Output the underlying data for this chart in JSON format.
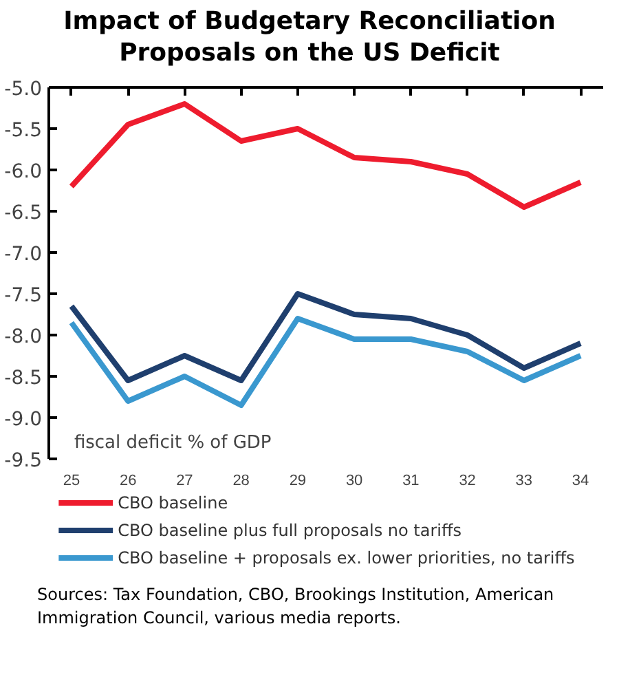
{
  "chart_data": {
    "type": "line",
    "title": "Impact of Budgetary Reconciliation Proposals on the US Deficit",
    "categories": [
      "25",
      "26",
      "27",
      "28",
      "29",
      "30",
      "31",
      "32",
      "33",
      "34"
    ],
    "series": [
      {
        "name": "CBO baseline",
        "color": "#ee1c2e",
        "values": [
          -6.2,
          -5.45,
          -5.2,
          -5.65,
          -5.5,
          -5.85,
          -5.9,
          -6.05,
          -6.45,
          -6.15
        ]
      },
      {
        "name": "CBO baseline plus full proposals no tariffs",
        "color": "#1f3f6e",
        "values": [
          -7.65,
          -8.55,
          -8.25,
          -8.55,
          -7.5,
          -7.75,
          -7.8,
          -8.0,
          -8.4,
          -8.1
        ]
      },
      {
        "name": "CBO baseline + proposals ex. lower priorities, no tariffs",
        "color": "#3a98cf",
        "values": [
          -7.85,
          -8.8,
          -8.5,
          -8.85,
          -7.8,
          -8.05,
          -8.05,
          -8.2,
          -8.55,
          -8.25
        ]
      }
    ],
    "ylim": [
      -9.5,
      -5.0
    ],
    "yticks": [
      {
        "value": -5.0,
        "label": "-5.0"
      },
      {
        "value": -5.5,
        "label": "-5.5"
      },
      {
        "value": -6.0,
        "label": "-6.0"
      },
      {
        "value": -6.5,
        "label": "-6.5"
      },
      {
        "value": -7.0,
        "label": "-7.0"
      },
      {
        "value": -7.5,
        "label": "-7.5"
      },
      {
        "value": -8.0,
        "label": "-8.0"
      },
      {
        "value": -8.5,
        "label": "-8.5"
      },
      {
        "value": -9.0,
        "label": "-9.0"
      },
      {
        "value": -9.5,
        "label": "-9.5"
      }
    ],
    "annotations": [
      "fiscal deficit % of GDP",
      "Sources: Tax Foundation, CBO, Brookings Institution, American Immigration Council, various media reports."
    ],
    "legend": "bottom",
    "grid": false,
    "marker": "none",
    "line_style": "solid"
  }
}
